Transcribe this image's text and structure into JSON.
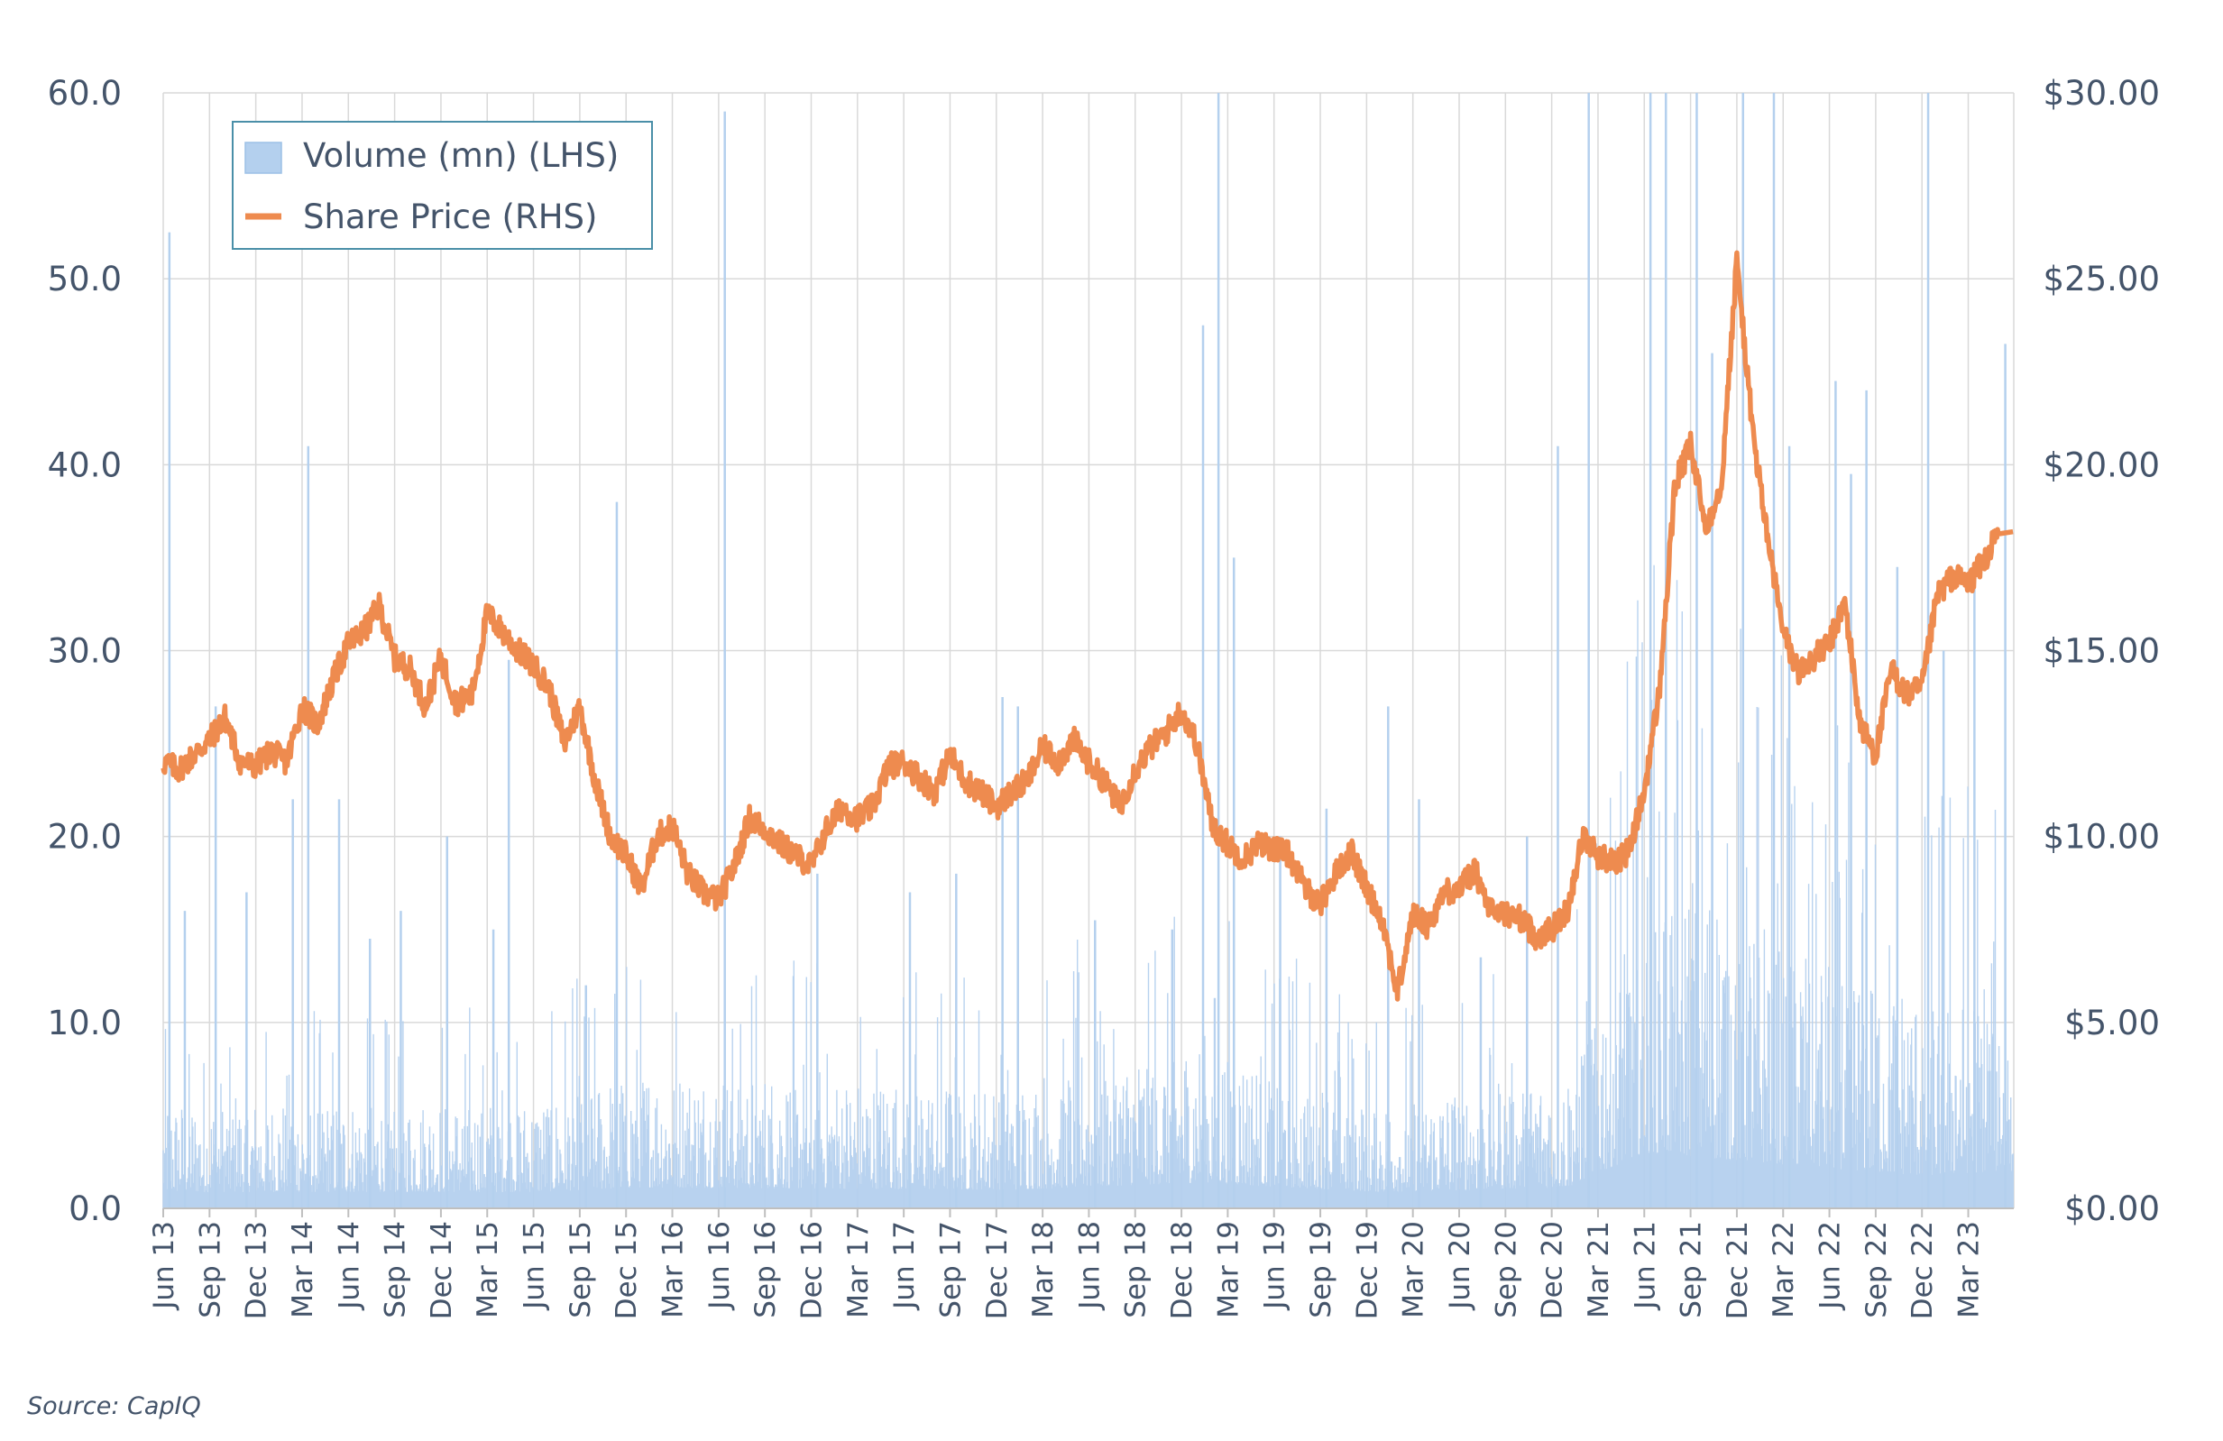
{
  "source": "Source: CapIQ",
  "chart_data": {
    "type": "bar+line",
    "x_ticks": [
      "Jun 13",
      "Sep 13",
      "Dec 13",
      "Mar 14",
      "Jun 14",
      "Sep 14",
      "Dec 14",
      "Mar 15",
      "Jun 15",
      "Sep 15",
      "Dec 15",
      "Mar 16",
      "Jun 16",
      "Sep 16",
      "Dec 16",
      "Mar 17",
      "Jun 17",
      "Sep 17",
      "Dec 17",
      "Mar 18",
      "Jun 18",
      "Sep 18",
      "Dec 18",
      "Mar 19",
      "Jun 19",
      "Sep 19",
      "Dec 19",
      "Mar 20",
      "Jun 20",
      "Sep 20",
      "Dec 20",
      "Mar 21",
      "Jun 21",
      "Sep 21",
      "Dec 21",
      "Mar 22",
      "Jun 22",
      "Sep 22",
      "Dec 22",
      "Mar 23"
    ],
    "y_left_ticks": [
      "0.0",
      "10.0",
      "20.0",
      "30.0",
      "40.0",
      "50.0",
      "60.0"
    ],
    "y_right_ticks": [
      "$0.00",
      "$5.00",
      "$10.00",
      "$15.00",
      "$20.00",
      "$25.00",
      "$30.00"
    ],
    "y_left_range": [
      0,
      60
    ],
    "y_right_range": [
      0,
      30
    ],
    "grid": true,
    "legend_position": "top-left",
    "legend": [
      {
        "label": "Volume (mn) (LHS)",
        "color": "#b4d0ee",
        "kind": "bar"
      },
      {
        "label": "Share Price (RHS)",
        "color": "#ee8b4f",
        "kind": "line"
      }
    ],
    "series": [
      {
        "name": "Share Price (RHS)",
        "axis": "right",
        "color": "#ee8b4f",
        "points": [
          [
            "Jun 13",
            12.0
          ],
          [
            "Jul 13",
            11.8
          ],
          [
            "Aug 13",
            12.2
          ],
          [
            "Sep 13",
            12.6
          ],
          [
            "Oct 13",
            13.2
          ],
          [
            "Nov 13",
            12.0
          ],
          [
            "Dec 13",
            11.9
          ],
          [
            "Jan 14",
            12.3
          ],
          [
            "Feb 14",
            12.0
          ],
          [
            "Mar 14",
            13.5
          ],
          [
            "Apr 14",
            13.0
          ],
          [
            "May 14",
            14.2
          ],
          [
            "Jun 14",
            15.2
          ],
          [
            "Jul 14",
            15.5
          ],
          [
            "Aug 14",
            16.2
          ],
          [
            "Sep 14",
            14.8
          ],
          [
            "Oct 14",
            14.5
          ],
          [
            "Nov 14",
            13.5
          ],
          [
            "Dec 14",
            14.8
          ],
          [
            "Jan 15",
            13.6
          ],
          [
            "Feb 15",
            13.8
          ],
          [
            "Mar 15",
            16.0
          ],
          [
            "Apr 15",
            15.5
          ],
          [
            "May 15",
            15.0
          ],
          [
            "Jun 15",
            14.6
          ],
          [
            "Jul 15",
            14.0
          ],
          [
            "Aug 15",
            12.5
          ],
          [
            "Sep 15",
            13.5
          ],
          [
            "Oct 15",
            11.5
          ],
          [
            "Nov 15",
            10.0
          ],
          [
            "Dec 15",
            9.5
          ],
          [
            "Jan 16",
            8.6
          ],
          [
            "Feb 16",
            10.0
          ],
          [
            "Mar 16",
            10.3
          ],
          [
            "Apr 16",
            9.0
          ],
          [
            "May 16",
            8.5
          ],
          [
            "Jun 16",
            8.3
          ],
          [
            "Jul 16",
            9.2
          ],
          [
            "Aug 16",
            10.5
          ],
          [
            "Sep 16",
            10.2
          ],
          [
            "Oct 16",
            9.8
          ],
          [
            "Nov 16",
            9.5
          ],
          [
            "Dec 16",
            9.2
          ],
          [
            "Jan 17",
            10.2
          ],
          [
            "Feb 17",
            10.8
          ],
          [
            "Mar 17",
            10.5
          ],
          [
            "Apr 17",
            10.8
          ],
          [
            "May 17",
            11.9
          ],
          [
            "Jun 17",
            12.0
          ],
          [
            "Jul 17",
            11.6
          ],
          [
            "Aug 17",
            11.2
          ],
          [
            "Sep 17",
            12.2
          ],
          [
            "Oct 17",
            11.5
          ],
          [
            "Nov 17",
            11.2
          ],
          [
            "Dec 17",
            10.8
          ],
          [
            "Jan 18",
            11.2
          ],
          [
            "Feb 18",
            11.5
          ],
          [
            "Mar 18",
            12.4
          ],
          [
            "Apr 18",
            12.0
          ],
          [
            "May 18",
            12.6
          ],
          [
            "Jun 18",
            12.0
          ],
          [
            "Jul 18",
            11.5
          ],
          [
            "Aug 18",
            10.8
          ],
          [
            "Sep 18",
            11.8
          ],
          [
            "Oct 18",
            12.4
          ],
          [
            "Nov 18",
            12.8
          ],
          [
            "Dec 18",
            13.4
          ],
          [
            "Jan 19",
            12.5
          ],
          [
            "Feb 19",
            10.3
          ],
          [
            "Mar 19",
            9.8
          ],
          [
            "Apr 19",
            9.4
          ],
          [
            "May 19",
            9.8
          ],
          [
            "Jun 19",
            9.7
          ],
          [
            "Jul 19",
            9.5
          ],
          [
            "Aug 19",
            8.6
          ],
          [
            "Sep 19",
            8.2
          ],
          [
            "Oct 19",
            9.0
          ],
          [
            "Nov 19",
            9.6
          ],
          [
            "Dec 19",
            8.6
          ],
          [
            "Jan 20",
            7.8
          ],
          [
            "Feb 20",
            5.8
          ],
          [
            "Mar 20",
            7.9
          ],
          [
            "Apr 20",
            7.6
          ],
          [
            "May 20",
            8.5
          ],
          [
            "Jun 20",
            8.6
          ],
          [
            "Jul 20",
            9.1
          ],
          [
            "Aug 20",
            8.0
          ],
          [
            "Sep 20",
            7.9
          ],
          [
            "Oct 20",
            7.8
          ],
          [
            "Nov 20",
            7.3
          ],
          [
            "Dec 20",
            7.5
          ],
          [
            "Jan 21",
            8.0
          ],
          [
            "Feb 21",
            10.0
          ],
          [
            "Mar 21",
            9.5
          ],
          [
            "Apr 21",
            9.3
          ],
          [
            "May 21",
            9.6
          ],
          [
            "Jun 21",
            11.2
          ],
          [
            "Jul 21",
            14.0
          ],
          [
            "Aug 21",
            19.5
          ],
          [
            "Sep 21",
            20.5
          ],
          [
            "Oct 21",
            18.3
          ],
          [
            "Nov 21",
            19.5
          ],
          [
            "Dec 21",
            25.5
          ],
          [
            "Jan 22",
            21.0
          ],
          [
            "Feb 22",
            18.0
          ],
          [
            "Mar 22",
            15.5
          ],
          [
            "Apr 22",
            14.4
          ],
          [
            "May 22",
            14.8
          ],
          [
            "Jun 22",
            15.2
          ],
          [
            "Jul 22",
            16.3
          ],
          [
            "Aug 22",
            13.0
          ],
          [
            "Sep 22",
            12.2
          ],
          [
            "Oct 22",
            14.5
          ],
          [
            "Nov 22",
            13.8
          ],
          [
            "Dec 22",
            14.0
          ],
          [
            "Jan 23",
            16.5
          ],
          [
            "Feb 23",
            17.0
          ],
          [
            "Mar 23",
            16.8
          ],
          [
            "Apr 23",
            17.4
          ],
          [
            "May 23",
            18.2
          ]
        ]
      },
      {
        "name": "Volume (mn) (LHS)",
        "axis": "left",
        "color": "#b4d0ee",
        "baseline": [
          [
            "Jun 13",
            3.5
          ],
          [
            "Jun 15",
            3.5
          ],
          [
            "Jan 16",
            4.5
          ],
          [
            "Jan 18",
            4.0
          ],
          [
            "Jan 19",
            5.5
          ],
          [
            "Jan 20",
            3.5
          ],
          [
            "Jan 21",
            4.5
          ],
          [
            "Jun 21",
            12.0
          ],
          [
            "Jan 22",
            10.0
          ],
          [
            "Dec 22",
            7.0
          ],
          [
            "May 23",
            8.0
          ]
        ],
        "spikes": [
          [
            "Jun 13",
            52.5
          ],
          [
            "Jul 13",
            16.0
          ],
          [
            "Sep 13",
            27.0
          ],
          [
            "Nov 13",
            17.0
          ],
          [
            "Feb 14",
            22.0
          ],
          [
            "Mar 14",
            41.0
          ],
          [
            "May 14",
            22.0
          ],
          [
            "Jul 14",
            14.5
          ],
          [
            "Sep 14",
            16.0
          ],
          [
            "Dec 14",
            20.0
          ],
          [
            "Mar 15",
            15.0
          ],
          [
            "Apr 15",
            29.5
          ],
          [
            "Sep 15",
            12.0
          ],
          [
            "Nov 15",
            38.0
          ],
          [
            "Jun 16",
            59.0
          ],
          [
            "Dec 16",
            18.0
          ],
          [
            "Jun 17",
            17.0
          ],
          [
            "Sep 17",
            18.0
          ],
          [
            "Dec 17",
            27.5
          ],
          [
            "Jan 18",
            27.0
          ],
          [
            "Jun 18",
            15.5
          ],
          [
            "Nov 18",
            15.0
          ],
          [
            "Jan 19",
            47.5
          ],
          [
            "Feb 19",
            60.0
          ],
          [
            "Mar 19",
            35.0
          ],
          [
            "Jun 19",
            20.0
          ],
          [
            "Sep 19",
            21.5
          ],
          [
            "Jan 20",
            27.0
          ],
          [
            "Mar 20",
            22.0
          ],
          [
            "Jul 20",
            13.5
          ],
          [
            "Oct 20",
            20.0
          ],
          [
            "Dec 20",
            41.0
          ],
          [
            "Feb 21",
            60.0
          ],
          [
            "Jun 21",
            60.0
          ],
          [
            "Jul 21",
            60.0
          ],
          [
            "Sep 21",
            60.0
          ],
          [
            "Oct 21",
            46.0
          ],
          [
            "Dec 21",
            60.0
          ],
          [
            "Feb 22",
            60.0
          ],
          [
            "Mar 22",
            41.0
          ],
          [
            "Jun 22",
            44.5
          ],
          [
            "Jul 22",
            39.5
          ],
          [
            "Aug 22",
            44.0
          ],
          [
            "Oct 22",
            34.5
          ],
          [
            "Dec 22",
            60.0
          ],
          [
            "Jan 23",
            30.0
          ],
          [
            "Mar 23",
            33.5
          ],
          [
            "May 23",
            46.5
          ]
        ]
      }
    ]
  }
}
